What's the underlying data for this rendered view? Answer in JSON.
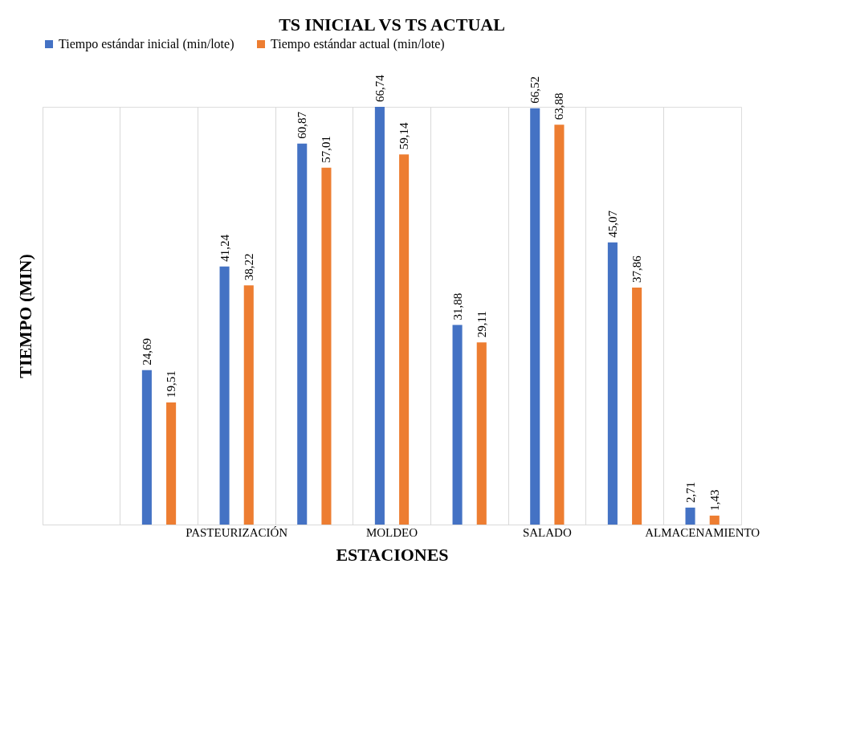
{
  "chart_data": {
    "type": "bar",
    "title": "TS INICIAL VS TS ACTUAL",
    "xlabel": "ESTACIONES",
    "ylabel": "TIEMPO (MIN)",
    "categories": [
      null,
      null,
      "PASTEURIZACIÓN",
      null,
      "MOLDEO",
      null,
      "SALADO",
      null,
      "ALMACENAMIENTO"
    ],
    "series": [
      {
        "name": "Tiempo estándar inicial (min/lote)",
        "color": "#4472c4",
        "values": [
          null,
          24.69,
          41.24,
          60.87,
          66.74,
          31.88,
          66.52,
          45.07,
          2.71
        ],
        "value_labels": [
          null,
          "24,69",
          "41,24",
          "60,87",
          "66,74",
          "31,88",
          "66,52",
          "45,07",
          "2,71"
        ]
      },
      {
        "name": "Tiempo estándar actual (min/lote)",
        "color": "#ed7d31",
        "values": [
          null,
          19.51,
          38.22,
          57.01,
          59.14,
          29.11,
          63.88,
          37.86,
          1.43
        ],
        "value_labels": [
          null,
          "19,51",
          "38,22",
          "57,01",
          "59,14",
          "29,11",
          "63,88",
          "37,86",
          "1,43"
        ]
      }
    ],
    "grid": "x",
    "legend": "top",
    "tick_labels": "x"
  }
}
